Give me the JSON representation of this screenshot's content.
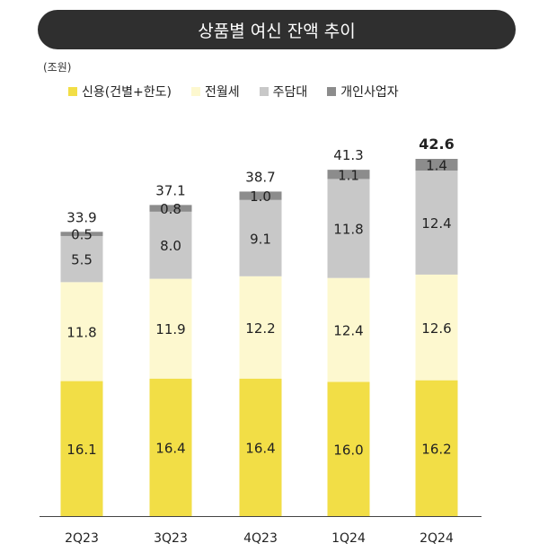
{
  "header": {
    "title": "상품별 여신 잔액 추이",
    "unit": "(조원)"
  },
  "legend": [
    {
      "label": "신용(건별+한도)",
      "color": "#F2DE46"
    },
    {
      "label": "전월세",
      "color": "#FDF8CF"
    },
    {
      "label": "주담대",
      "color": "#C8C8C8"
    },
    {
      "label": "개인사업자",
      "color": "#8C8C8C"
    }
  ],
  "chart_data": {
    "type": "bar",
    "stacked": true,
    "categories": [
      "2Q23",
      "3Q23",
      "4Q23",
      "1Q24",
      "2Q24"
    ],
    "series": [
      {
        "name": "신용(건별+한도)",
        "values": [
          16.1,
          16.4,
          16.4,
          16.0,
          16.2
        ],
        "color": "#F2DE46"
      },
      {
        "name": "전월세",
        "values": [
          11.8,
          11.9,
          12.2,
          12.4,
          12.6
        ],
        "color": "#FDF8CF"
      },
      {
        "name": "주담대",
        "values": [
          5.5,
          8.0,
          9.1,
          11.8,
          12.4
        ],
        "color": "#C8C8C8"
      },
      {
        "name": "개인사업자",
        "values": [
          0.5,
          0.8,
          1.0,
          1.1,
          1.4
        ],
        "color": "#8C8C8C"
      }
    ],
    "totals": [
      33.9,
      37.1,
      38.7,
      41.3,
      42.6
    ],
    "highlight_total_index": 4,
    "ylim": [
      0,
      42.6
    ]
  }
}
